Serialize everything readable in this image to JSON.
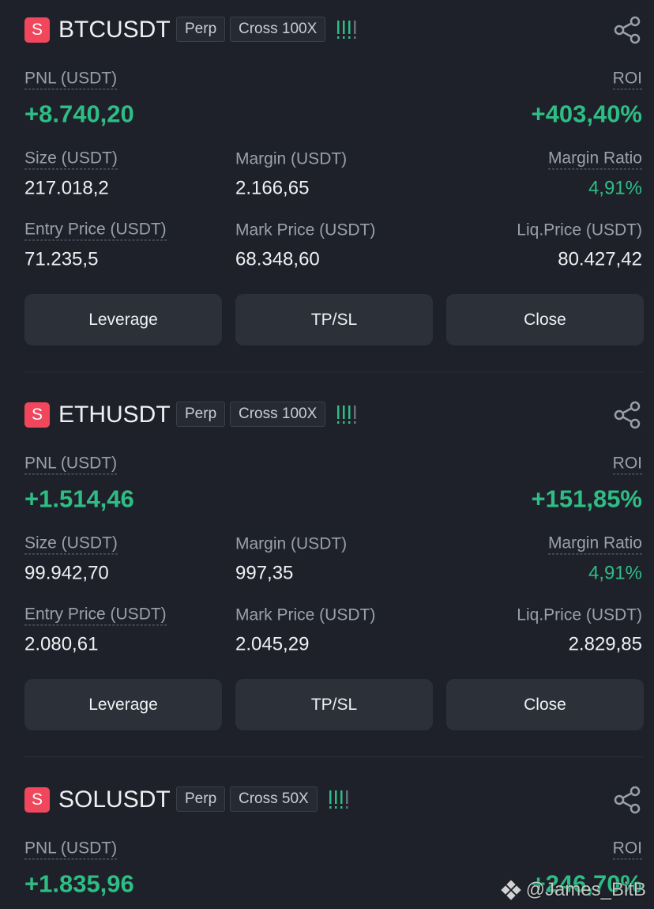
{
  "positions": [
    {
      "badge": "S",
      "symbol": "BTCUSDT",
      "type": "Perp",
      "margin_mode": "Cross 100X",
      "pnl_label": "PNL (USDT)",
      "pnl": "+8.740,20",
      "roi_label": "ROI",
      "roi": "+403,40%",
      "fields": [
        [
          {
            "label": "Size (USDT)",
            "value": "217.018,2"
          },
          {
            "label": "Margin (USDT)",
            "value": "2.166,65"
          },
          {
            "label": "Margin Ratio",
            "value": "4,91%",
            "color": "#2ebd85"
          }
        ],
        [
          {
            "label": "Entry Price (USDT)",
            "value": "71.235,5"
          },
          {
            "label": "Mark Price (USDT)",
            "value": "68.348,60"
          },
          {
            "label": "Liq.Price (USDT)",
            "value": "80.427,42"
          }
        ]
      ],
      "buttons": [
        "Leverage",
        "TP/SL",
        "Close"
      ]
    },
    {
      "badge": "S",
      "symbol": "ETHUSDT",
      "type": "Perp",
      "margin_mode": "Cross 100X",
      "pnl_label": "PNL (USDT)",
      "pnl": "+1.514,46",
      "roi_label": "ROI",
      "roi": "+151,85%",
      "fields": [
        [
          {
            "label": "Size (USDT)",
            "value": "99.942,70"
          },
          {
            "label": "Margin (USDT)",
            "value": "997,35"
          },
          {
            "label": "Margin Ratio",
            "value": "4,91%",
            "color": "#2ebd85"
          }
        ],
        [
          {
            "label": "Entry Price (USDT)",
            "value": "2.080,61"
          },
          {
            "label": "Mark Price (USDT)",
            "value": "2.045,29"
          },
          {
            "label": "Liq.Price (USDT)",
            "value": "2.829,85"
          }
        ]
      ],
      "buttons": [
        "Leverage",
        "TP/SL",
        "Close"
      ]
    },
    {
      "badge": "S",
      "symbol": "SOLUSDT",
      "type": "Perp",
      "margin_mode": "Cross 50X",
      "pnl_label": "PNL (USDT)",
      "pnl": "+1.835,96",
      "roi_label": "ROI",
      "roi": "+246,70%"
    }
  ],
  "watermark": "@James_BitB"
}
